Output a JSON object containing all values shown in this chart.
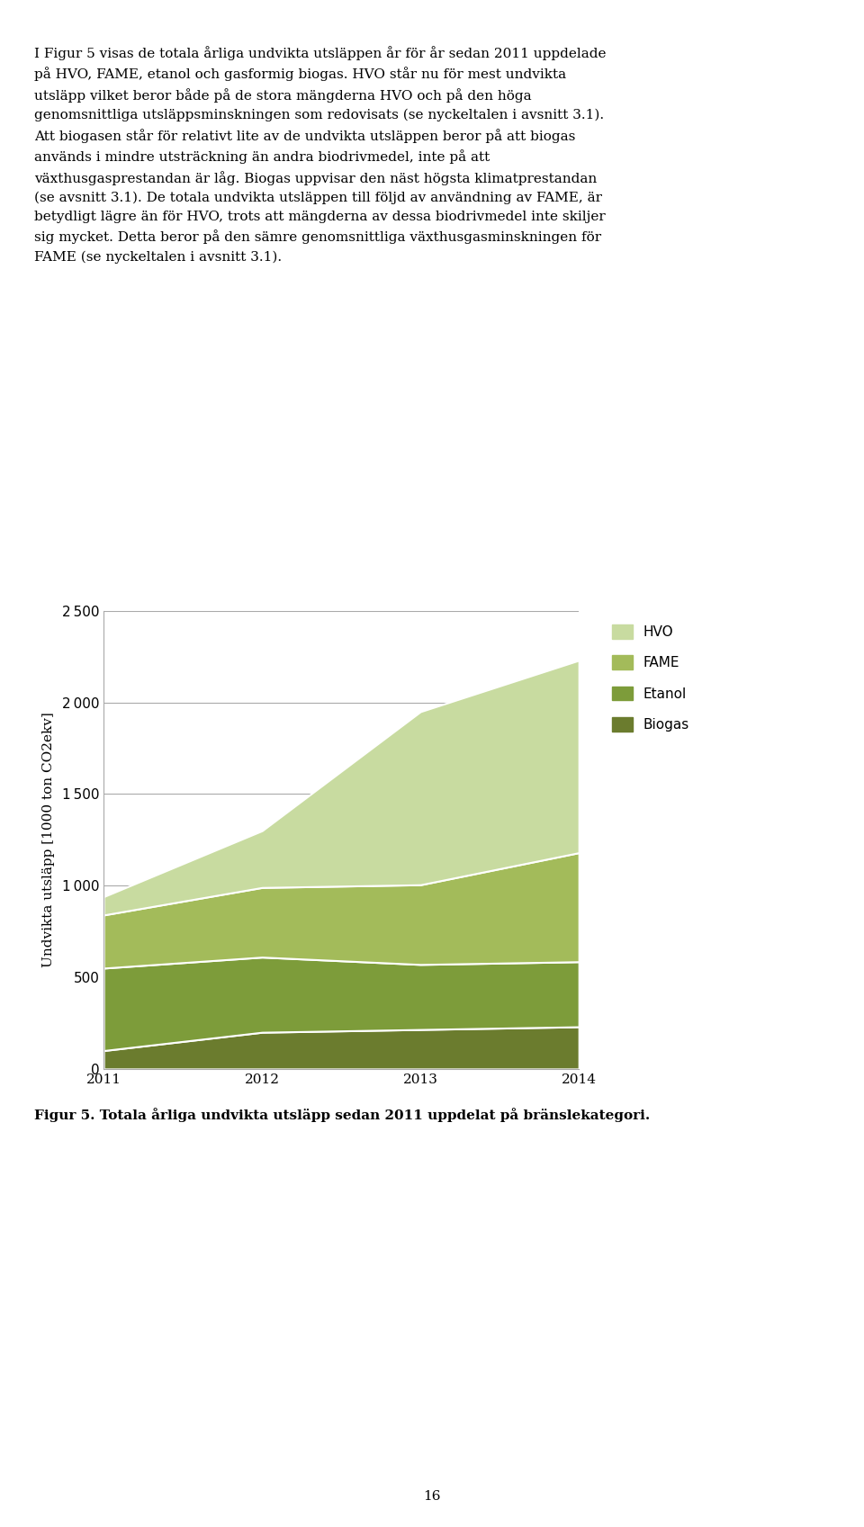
{
  "years": [
    2011,
    2012,
    2013,
    2014
  ],
  "biogas": [
    100,
    200,
    215,
    230
  ],
  "etanol": [
    450,
    410,
    355,
    355
  ],
  "fame": [
    290,
    380,
    435,
    595
  ],
  "hvo": [
    100,
    310,
    945,
    1050
  ],
  "colors": {
    "biogas": "#6b7c2e",
    "etanol": "#7d9c3a",
    "fame": "#a3bb5a",
    "hvo": "#c8dba0"
  },
  "ylabel": "Undvikta utsläpp [1000 ton CO2ekv]",
  "ylim": [
    0,
    2500
  ],
  "yticks": [
    0,
    500,
    1000,
    1500,
    2000,
    2500
  ],
  "legend_labels": [
    "HVO",
    "FAME",
    "Etanol",
    "Biogas"
  ],
  "caption": "Figur 5. Totala årliga undvikta utsläpp sedan 2011 uppdelat på bränslekategori.",
  "body_text": "I Figur 5 visas de totala årliga undvikta utsläppen år för år sedan 2011 uppdelade\npå HVO, FAME, etanol och gasformig biogas. HVO står nu för mest undvikta\nutsläpp vilket beror både på de stora mängderna HVO och på den höga\ngenomsnittliga utsläppsminskningen som redovisats (se nyckeltalen i avsnitt 3.1).\nAtt biogasen står för relativt lite av de undvikta utsläppen beror på att biogas\nanvänds i mindre utsträckning än andra biodrivmedel, inte på att\nväxthusgasprestandan är låg. Biogas uppvisar den näst högsta klimatprestandan\n(se avsnitt 3.1). De totala undvikta utsläppen till följd av användning av FAME, är\nbetydligt lägre än för HVO, trots att mängderna av dessa biodrivmedel inte skiljer\nsig mycket. Detta beror på den sämre genomsnittliga växthusgasminskningen för\nFAME (se nyckeltalen i avsnitt 3.1).",
  "page_number": "16"
}
